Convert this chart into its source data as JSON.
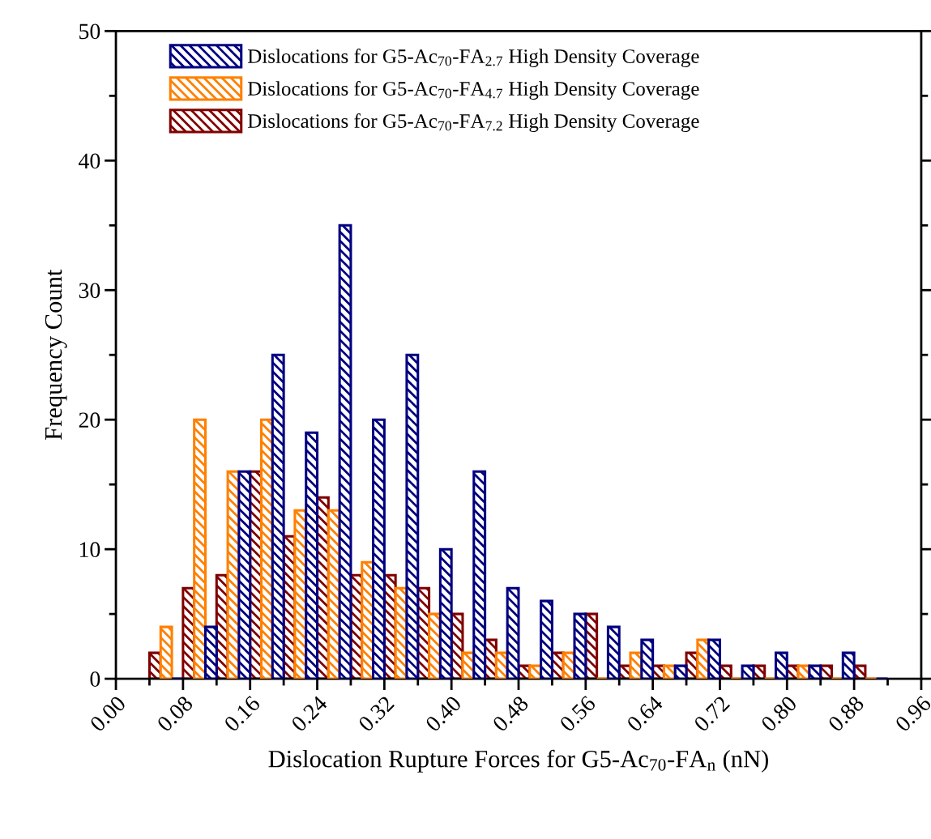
{
  "chart_data": {
    "type": "histogram",
    "xlabel": "Dislocation Rupture Forces for G5-Ac$_{70}$-FA$_{n}$ (nN)",
    "ylabel": "Frequency Count",
    "bins": [
      0.04,
      0.08,
      0.12,
      0.16,
      0.2,
      0.24,
      0.28,
      0.32,
      0.36,
      0.4,
      0.44,
      0.48,
      0.52,
      0.56,
      0.6,
      0.64,
      0.68,
      0.72,
      0.76,
      0.8,
      0.84,
      0.88,
      0.92
    ],
    "series": [
      {
        "name": "Dislocations for G5-Ac$_{70}$-FA$_{2.7}$ High Density Coverage",
        "color": "#000080",
        "values": [
          0,
          4,
          16,
          25,
          19,
          35,
          20,
          25,
          10,
          16,
          7,
          6,
          5,
          4,
          3,
          1,
          3,
          1,
          2,
          1,
          2,
          0
        ]
      },
      {
        "name": "Dislocations for G5-Ac$_{70}$-FA$_{4.7}$ High Density Coverage",
        "color": "#ff8000",
        "values": [
          4,
          20,
          16,
          20,
          13,
          13,
          9,
          7,
          5,
          2,
          2,
          1,
          2,
          0,
          2,
          1,
          3,
          0,
          0,
          1,
          0,
          0
        ]
      },
      {
        "name": "Dislocations for G5-Ac$_{70}$-FA$_{7.2}$ High Density Coverage",
        "color": "#800000",
        "values": [
          2,
          7,
          8,
          16,
          11,
          14,
          8,
          8,
          7,
          5,
          3,
          1,
          2,
          5,
          1,
          1,
          2,
          1,
          1,
          1,
          1,
          1
        ]
      }
    ],
    "xlim": [
      0,
      0.96
    ],
    "xticks": [
      {
        "value": 0,
        "label": "0.00"
      },
      {
        "value": 0.08,
        "label": "0.08"
      },
      {
        "value": 0.16,
        "label": "0.16"
      },
      {
        "value": 0.24,
        "label": "0.24"
      },
      {
        "value": 0.32,
        "label": "0.32"
      },
      {
        "value": 0.4,
        "label": "0.40"
      },
      {
        "value": 0.48,
        "label": "0.48"
      },
      {
        "value": 0.56,
        "label": "0.56"
      },
      {
        "value": 0.64,
        "label": "0.64"
      },
      {
        "value": 0.72,
        "label": "0.72"
      },
      {
        "value": 0.8,
        "label": "0.80"
      },
      {
        "value": 0.88,
        "label": "0.88"
      },
      {
        "value": 0.96,
        "label": "0.96"
      }
    ],
    "ylim": [
      0,
      50
    ],
    "yticks": [
      0,
      10,
      20,
      30,
      40,
      50
    ],
    "grid": false,
    "legend": "top left"
  }
}
